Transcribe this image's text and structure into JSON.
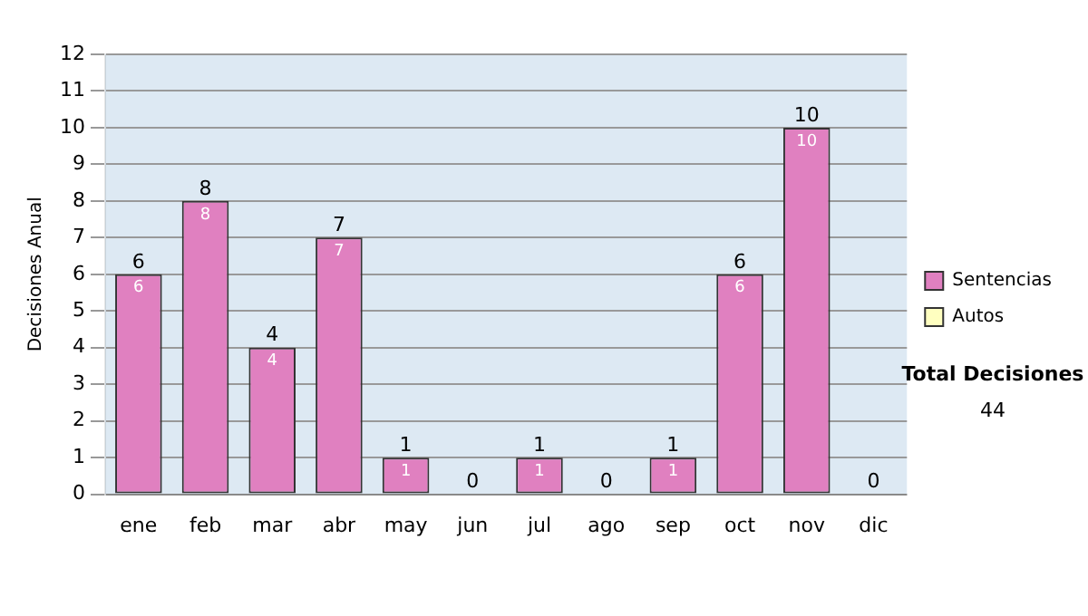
{
  "chart_data": {
    "type": "bar",
    "ylabel": "Decisiones Anual",
    "categories": [
      "ene",
      "feb",
      "mar",
      "abr",
      "may",
      "jun",
      "jul",
      "ago",
      "sep",
      "oct",
      "nov",
      "dic"
    ],
    "series": [
      {
        "name": "Sentencias",
        "color": "#e080c0",
        "values": [
          6,
          8,
          4,
          7,
          1,
          0,
          1,
          0,
          1,
          6,
          10,
          0
        ],
        "value_labels": [
          "6",
          "8",
          "4",
          "7",
          "1",
          null,
          "1",
          null,
          "1",
          "6",
          "10",
          null
        ]
      },
      {
        "name": "Autos",
        "color": "#ffffc0",
        "values": [
          0,
          0,
          0,
          0,
          0,
          0,
          0,
          0,
          0,
          0,
          0,
          0
        ]
      }
    ],
    "stacked": true,
    "totals": [
      "6",
      "8",
      "4",
      "7",
      "1",
      "0",
      "1",
      "0",
      "1",
      "6",
      "10",
      "0"
    ],
    "ylim": [
      0,
      12
    ],
    "yticks": [
      0,
      1,
      2,
      3,
      4,
      5,
      6,
      7,
      8,
      9,
      10,
      11,
      12
    ],
    "grid": "y",
    "legend": "right",
    "annotations": [
      "Total Decisiones",
      "44"
    ]
  }
}
